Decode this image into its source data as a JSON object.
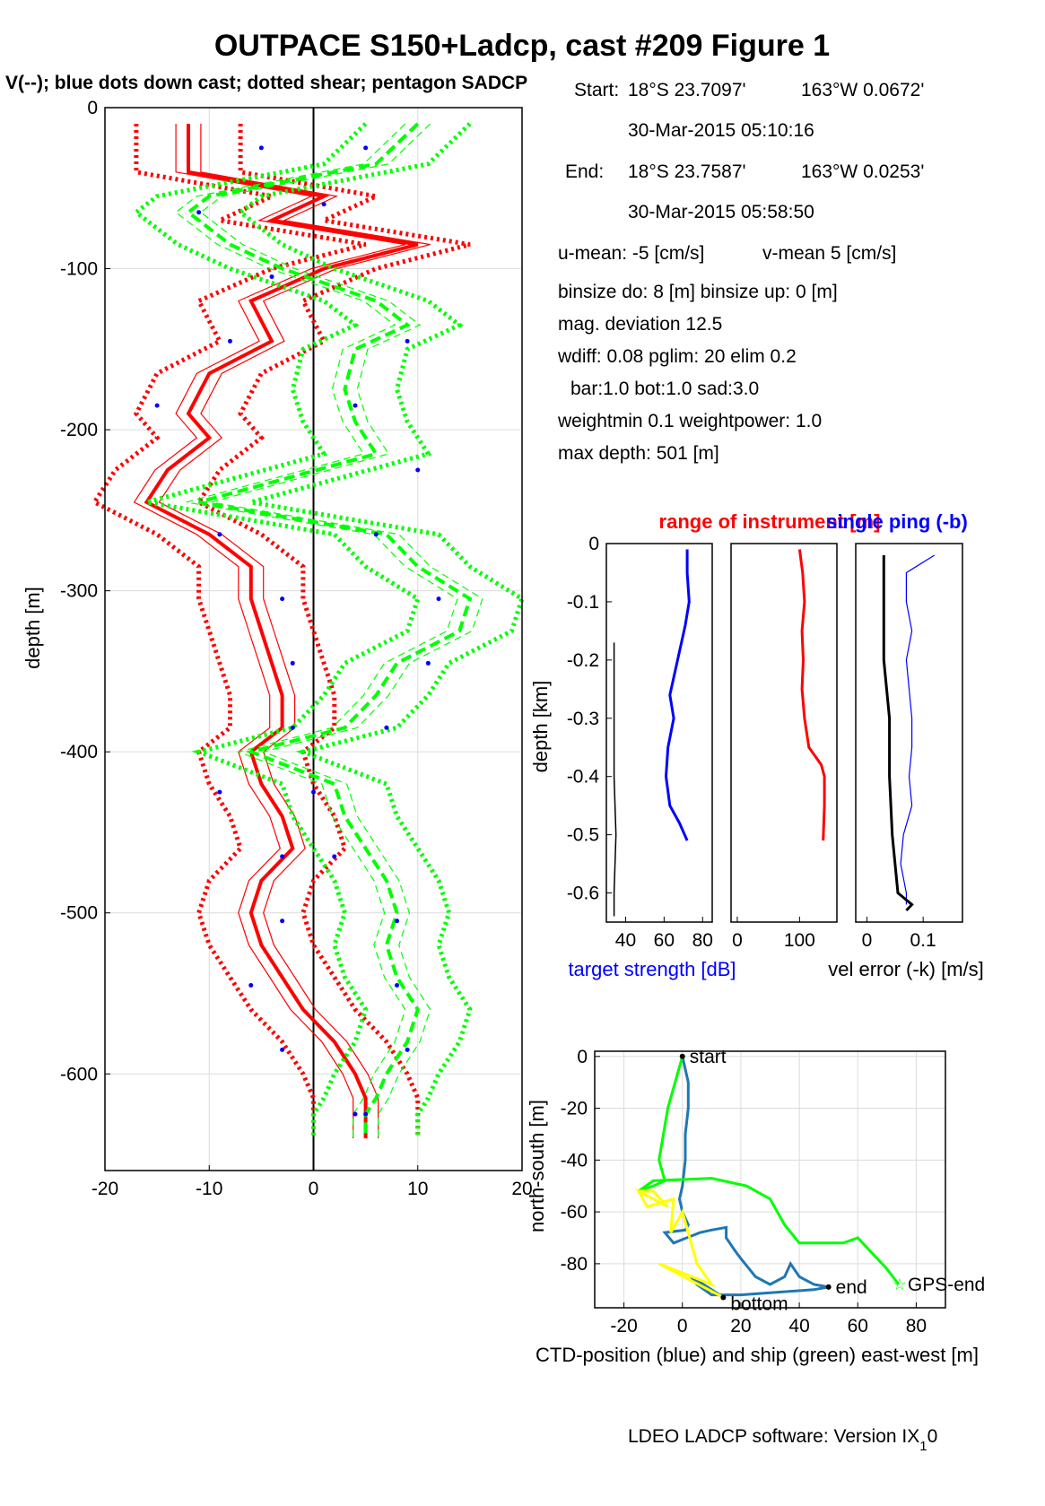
{
  "figure": {
    "title": "OUTPACE S150+Ladcp, cast #209  Figure 1",
    "footer": "LDEO LADCP software: Version IX",
    "footer_sub": "1",
    "footer_tail": "0"
  },
  "colors": {
    "red": "#ff0000",
    "green": "#00ff00",
    "blue": "#0000ff",
    "ctd_blue": "#1f77b4",
    "yellow": "#ffff00",
    "black": "#000000"
  },
  "info": {
    "start_label": "Start:",
    "start_lat": "18°S 23.7097'",
    "start_lon": "163°W  0.0672'",
    "start_time": "30-Mar-2015 05:10:16",
    "end_label": "End:",
    "end_lat": "18°S 23.7587'",
    "end_lon": "163°W  0.0253'",
    "end_time": "30-Mar-2015 05:58:50",
    "umean": "u-mean:  -5 [cm/s]",
    "vmean": "v-mean   5 [cm/s]",
    "binsize": "binsize do: 8 [m]  binsize up:  0 [m]",
    "magdev": "mag. deviation 12.5",
    "wdiff": "wdiff: 0.08  pglim: 20  elim 0.2",
    "bar": "bar:1.0 bot:1.0 sad:3.0",
    "weight": "weightmin 0.1  weightpower: 1.0",
    "maxdepth": "max depth: 501 [m]"
  },
  "chart_data": [
    {
      "id": "velocity_profile",
      "type": "line",
      "title": "V(--); blue dots down cast; dotted shear; pentagon SADCP",
      "xlabel": "",
      "ylabel": "depth [m]",
      "xlim": [
        -20,
        20
      ],
      "ylim": [
        -660,
        0
      ],
      "xticks": [
        -20,
        -10,
        0,
        10,
        20
      ],
      "yticks": [
        0,
        -100,
        -200,
        -300,
        -400,
        -500,
        -600
      ],
      "grid": true,
      "series": [
        {
          "color": "red",
          "depth": [
            -10,
            -40,
            -55,
            -70,
            -85,
            -100,
            -120,
            -145,
            -165,
            -190,
            -205,
            -225,
            -245,
            -265,
            -285,
            -305,
            -325,
            -345,
            -365,
            -385,
            -400,
            -420,
            -440,
            -460,
            -480,
            -500,
            -520,
            -540,
            -560,
            -580,
            -600,
            -615,
            -625,
            -640
          ],
          "values": [
            -12,
            -12,
            1,
            -4,
            10,
            1,
            -6,
            -4,
            -10,
            -12,
            -10,
            -14,
            -16,
            -10,
            -6,
            -6,
            -5,
            -4,
            -3,
            -3,
            -6,
            -5,
            -3,
            -2,
            -5,
            -6,
            -5,
            -3,
            -1,
            2,
            4,
            5,
            5,
            5
          ]
        },
        {
          "color": "green",
          "depth": [
            -10,
            -35,
            -55,
            -65,
            -85,
            -100,
            -120,
            -135,
            -150,
            -175,
            -195,
            -215,
            -245,
            -265,
            -285,
            -305,
            -325,
            -345,
            -365,
            -385,
            -400,
            -420,
            -440,
            -460,
            -480,
            -500,
            -520,
            -540,
            -560,
            -580,
            -600,
            -615,
            -625,
            -640
          ],
          "values": [
            10,
            6,
            -10,
            -12,
            -8,
            -3,
            6,
            9,
            4,
            3,
            4,
            6,
            -11,
            7,
            10,
            15,
            14,
            8,
            6,
            3,
            -6,
            2,
            3,
            5,
            7,
            8,
            7,
            8,
            10,
            9,
            7,
            6,
            5,
            5
          ]
        }
      ],
      "points": {
        "color": "blue",
        "depth": [
          -25,
          -25,
          -60,
          -65,
          -105,
          -145,
          -145,
          -185,
          -185,
          -225,
          -265,
          -265,
          -305,
          -305,
          -345,
          -345,
          -385,
          -385,
          -425,
          -425,
          -465,
          -465,
          -505,
          -505,
          -545,
          -545,
          -585,
          -585,
          -625,
          -625
        ],
        "values": [
          -5,
          5,
          1,
          -11,
          -4,
          9,
          -8,
          4,
          -15,
          10,
          -9,
          6,
          -3,
          12,
          -2,
          11,
          -2,
          7,
          -9,
          0,
          -3,
          2,
          -3,
          8,
          -6,
          8,
          -3,
          9,
          4,
          5
        ]
      }
    },
    {
      "id": "target_strength",
      "type": "line",
      "title": "",
      "xlabel": "target strength [dB]",
      "ylabel": "depth [km]",
      "xlim": [
        30,
        85
      ],
      "ylim": [
        -0.65,
        0
      ],
      "xticks": [
        40,
        60,
        80
      ],
      "yticks": [
        0,
        -0.1,
        -0.2,
        -0.3,
        -0.4,
        -0.5,
        -0.6
      ],
      "series": [
        {
          "color": "blue",
          "depth": [
            -0.01,
            -0.05,
            -0.1,
            -0.14,
            -0.2,
            -0.26,
            -0.3,
            -0.35,
            -0.4,
            -0.45,
            -0.48,
            -0.51
          ],
          "values": [
            72,
            72,
            73,
            71,
            67,
            63,
            65,
            62,
            61,
            63,
            68,
            72
          ]
        },
        {
          "color": "black",
          "depth": [
            -0.17,
            -0.3,
            -0.4,
            -0.5,
            -0.6,
            -0.64
          ],
          "values": [
            34,
            34,
            34,
            35,
            34,
            34
          ]
        }
      ]
    },
    {
      "id": "range",
      "type": "line",
      "title": "range of instrument [m]",
      "xlabel": "",
      "ylabel": "",
      "xlim": [
        -10,
        160
      ],
      "ylim": [
        -0.65,
        0
      ],
      "xticks": [
        0,
        100
      ],
      "series": [
        {
          "color": "red",
          "depth": [
            -0.01,
            -0.05,
            -0.1,
            -0.15,
            -0.2,
            -0.25,
            -0.3,
            -0.35,
            -0.38,
            -0.4,
            -0.45,
            -0.51
          ],
          "values": [
            100,
            105,
            108,
            104,
            106,
            104,
            108,
            115,
            135,
            140,
            140,
            138
          ]
        }
      ]
    },
    {
      "id": "single_ping",
      "type": "line",
      "title": "single ping (-b)",
      "xlabel": "vel error (-k) [m/s]",
      "ylabel": "",
      "xlim": [
        -0.02,
        0.17
      ],
      "ylim": [
        -0.65,
        0
      ],
      "xticks": [
        0,
        0.1
      ],
      "series": [
        {
          "color": "blue",
          "depth": [
            -0.02,
            -0.05,
            -0.1,
            -0.15,
            -0.2,
            -0.3,
            -0.35,
            -0.4,
            -0.45,
            -0.5,
            -0.55,
            -0.6,
            -0.62
          ],
          "values": [
            0.12,
            0.07,
            0.07,
            0.08,
            0.07,
            0.08,
            0.08,
            0.075,
            0.08,
            0.065,
            0.06,
            0.07,
            0.07
          ]
        },
        {
          "color": "black",
          "depth": [
            -0.02,
            -0.1,
            -0.2,
            -0.3,
            -0.4,
            -0.5,
            -0.6,
            -0.62,
            -0.63
          ],
          "values": [
            0.03,
            0.03,
            0.03,
            0.04,
            0.04,
            0.045,
            0.055,
            0.08,
            0.07
          ]
        }
      ]
    },
    {
      "id": "position",
      "type": "line",
      "title": "",
      "xlabel": "CTD-position (blue) and ship (green) east-west [m]",
      "ylabel": "north-south [m]",
      "xlim": [
        -30,
        90
      ],
      "ylim": [
        -97,
        2
      ],
      "xticks": [
        -20,
        0,
        20,
        40,
        60,
        80
      ],
      "yticks": [
        0,
        -20,
        -40,
        -60,
        -80
      ],
      "grid": true,
      "series": [
        {
          "color": "ctd_blue",
          "x": [
            0,
            2,
            2,
            1,
            1,
            0,
            -1,
            0,
            2,
            1,
            -6,
            -3,
            6,
            10,
            15,
            15,
            18,
            20,
            25,
            30,
            35,
            37,
            40,
            45,
            50,
            45,
            20,
            10,
            5,
            3,
            10,
            14
          ],
          "y": [
            0,
            -10,
            -20,
            -30,
            -40,
            -50,
            -55,
            -60,
            -65,
            -67,
            -68,
            -72,
            -68,
            -67,
            -66,
            -70,
            -75,
            -78,
            -85,
            -88,
            -85,
            -80,
            -85,
            -88,
            -89,
            -90,
            -92,
            -92,
            -88,
            -85,
            -90,
            -93
          ]
        },
        {
          "color": "green",
          "x": [
            0,
            -5,
            -8,
            -6,
            -10,
            -15,
            -10,
            10,
            22,
            30,
            35,
            40,
            55,
            60,
            65,
            70,
            74
          ],
          "y": [
            0,
            -20,
            -40,
            -48,
            -50,
            -52,
            -48,
            -47,
            -50,
            -55,
            -65,
            -72,
            -72,
            -70,
            -76,
            -82,
            -88
          ]
        },
        {
          "color": "yellow",
          "x": [
            -15,
            -10,
            -5,
            -15,
            -12,
            -3,
            -4,
            0,
            5,
            10,
            -8,
            14
          ],
          "y": [
            -52,
            -52,
            -58,
            -52,
            -58,
            -55,
            -68,
            -60,
            -80,
            -88,
            -80,
            -93
          ]
        }
      ],
      "markers": [
        {
          "label": "start",
          "x": 0,
          "y": 0
        },
        {
          "label": "bottom",
          "x": 14,
          "y": -93
        },
        {
          "label": "end",
          "x": 50,
          "y": -89
        },
        {
          "label": "GPS-end",
          "x": 74,
          "y": -88
        }
      ]
    }
  ]
}
